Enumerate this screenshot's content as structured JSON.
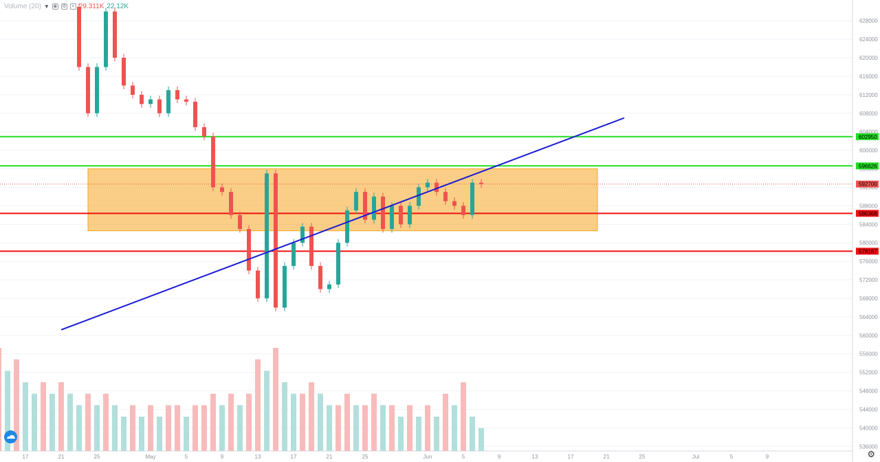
{
  "legend": {
    "indicator": "Volume (20)",
    "chevron": "chevron-down-icon",
    "value_red": "29.311K",
    "value_green": "22.12K",
    "icons": [
      "eye-icon",
      "gear-icon",
      "close-icon"
    ]
  },
  "chart_data": {
    "type": "candlestick",
    "price_range": [
      535000,
      631000
    ],
    "price_ticks": [
      628000,
      624000,
      620000,
      616000,
      612000,
      608000,
      604000,
      600000,
      596000,
      592000,
      588000,
      584000,
      580000,
      576000,
      572000,
      568000,
      564000,
      560000,
      556000,
      552000,
      548000,
      544000,
      540000,
      536000
    ],
    "x_axis_labels": [
      "17",
      "21",
      "25",
      "May",
      "5",
      "9",
      "13",
      "17",
      "21",
      "25",
      "Jun",
      "5",
      "9",
      "13",
      "17",
      "21",
      "25",
      "Jul",
      "5",
      "9"
    ],
    "price_labels": [
      {
        "value": "602950",
        "color": "#22dd22"
      },
      {
        "value": "596626",
        "color": "#22dd22"
      },
      {
        "value": "592700",
        "color": "#ef5350"
      },
      {
        "value": "586368",
        "color": "#ee1111"
      },
      {
        "value": "578187",
        "color": "#ee1111"
      }
    ],
    "horizontal_lines": [
      {
        "price": 602950,
        "color": "#22dd22"
      },
      {
        "price": 596626,
        "color": "#22dd22"
      },
      {
        "price": 586368,
        "color": "#ee1111"
      },
      {
        "price": 578187,
        "color": "#ee1111"
      }
    ],
    "current_price_line": {
      "price": 592700,
      "color": "#ef5350"
    },
    "trendline": {
      "from": {
        "date": "Apr 21",
        "price": 561200
      },
      "to": {
        "date": "Jun 23",
        "price": 607000
      },
      "color": "#1a1ad4"
    },
    "range_box": {
      "from_date": "Apr 24",
      "to_date": "Jun 20",
      "top": 596000,
      "bottom": 582600,
      "color": "#f5a623"
    },
    "price_path": [
      {
        "date": "Apr 22",
        "price": 631000
      },
      {
        "date": "Apr 23",
        "price": 618000
      },
      {
        "date": "Apr 24",
        "price": 608000
      },
      {
        "date": "Apr 25",
        "price": 618000
      },
      {
        "date": "Apr 26",
        "price": 630000
      },
      {
        "date": "Apr 27",
        "price": 620000
      },
      {
        "date": "Apr 28",
        "price": 614000
      },
      {
        "date": "Apr 29",
        "price": 612000
      },
      {
        "date": "Apr 30",
        "price": 610000
      },
      {
        "date": "May 1",
        "price": 611000
      },
      {
        "date": "May 2",
        "price": 608000
      },
      {
        "date": "May 3",
        "price": 613000
      },
      {
        "date": "May 4",
        "price": 611000
      },
      {
        "date": "May 5",
        "price": 610500
      },
      {
        "date": "May 6",
        "price": 605000
      },
      {
        "date": "May 7",
        "price": 603000
      },
      {
        "date": "May 8",
        "price": 592000
      },
      {
        "date": "May 9",
        "price": 591000
      },
      {
        "date": "May 10",
        "price": 586000
      },
      {
        "date": "May 11",
        "price": 583000
      },
      {
        "date": "May 12",
        "price": 574000
      },
      {
        "date": "May 13",
        "price": 568000
      },
      {
        "date": "May 14",
        "price": 595000
      },
      {
        "date": "May 15",
        "price": 566000
      },
      {
        "date": "May 16",
        "price": 575000
      },
      {
        "date": "May 17",
        "price": 580000
      },
      {
        "date": "May 18",
        "price": 583500
      },
      {
        "date": "May 19",
        "price": 575000
      },
      {
        "date": "May 20",
        "price": 570000
      },
      {
        "date": "May 21",
        "price": 571000
      },
      {
        "date": "May 22",
        "price": 580000
      },
      {
        "date": "May 23",
        "price": 587000
      },
      {
        "date": "May 24",
        "price": 591000
      },
      {
        "date": "May 25",
        "price": 585000
      },
      {
        "date": "May 26",
        "price": 590000
      },
      {
        "date": "May 27",
        "price": 583000
      },
      {
        "date": "May 28",
        "price": 588000
      },
      {
        "date": "May 29",
        "price": 584000
      },
      {
        "date": "May 30",
        "price": 588000
      },
      {
        "date": "May 31",
        "price": 592000
      },
      {
        "date": "Jun 1",
        "price": 593000
      },
      {
        "date": "Jun 2",
        "price": 591000
      },
      {
        "date": "Jun 3",
        "price": 589000
      },
      {
        "date": "Jun 4",
        "price": 588000
      },
      {
        "date": "Jun 5",
        "price": 586000
      },
      {
        "date": "Jun 6",
        "price": 593000
      },
      {
        "date": "Jun 7",
        "price": 592700
      }
    ],
    "volume_bars": [
      {
        "date": "Apr 14",
        "volume": 9
      },
      {
        "date": "Apr 15",
        "volume": 7
      },
      {
        "date": "Apr 16",
        "volume": 8
      },
      {
        "date": "Apr 17",
        "volume": 6
      },
      {
        "date": "Apr 18",
        "volume": 5
      },
      {
        "date": "Apr 19",
        "volume": 6
      },
      {
        "date": "Apr 20",
        "volume": 5
      },
      {
        "date": "Apr 21",
        "volume": 6
      },
      {
        "date": "Apr 22",
        "volume": 5
      },
      {
        "date": "Apr 23",
        "volume": 4
      },
      {
        "date": "Apr 24",
        "volume": 5
      },
      {
        "date": "Apr 25",
        "volume": 4
      },
      {
        "date": "Apr 26",
        "volume": 5
      },
      {
        "date": "Apr 27",
        "volume": 4
      },
      {
        "date": "Apr 28",
        "volume": 3
      },
      {
        "date": "Apr 29",
        "volume": 4
      },
      {
        "date": "Apr 30",
        "volume": 3
      },
      {
        "date": "May 1",
        "volume": 4
      },
      {
        "date": "May 2",
        "volume": 3
      },
      {
        "date": "May 3",
        "volume": 4
      },
      {
        "date": "May 4",
        "volume": 4
      },
      {
        "date": "May 5",
        "volume": 3
      },
      {
        "date": "May 6",
        "volume": 4
      },
      {
        "date": "May 7",
        "volume": 4
      },
      {
        "date": "May 8",
        "volume": 5
      },
      {
        "date": "May 9",
        "volume": 4
      },
      {
        "date": "May 10",
        "volume": 5
      },
      {
        "date": "May 11",
        "volume": 4
      },
      {
        "date": "May 12",
        "volume": 5
      },
      {
        "date": "May 13",
        "volume": 8
      },
      {
        "date": "May 14",
        "volume": 7
      },
      {
        "date": "May 15",
        "volume": 9
      },
      {
        "date": "May 16",
        "volume": 6
      },
      {
        "date": "May 17",
        "volume": 5
      },
      {
        "date": "May 18",
        "volume": 5
      },
      {
        "date": "May 19",
        "volume": 6
      },
      {
        "date": "May 20",
        "volume": 5
      },
      {
        "date": "May 21",
        "volume": 4
      },
      {
        "date": "May 22",
        "volume": 4
      },
      {
        "date": "May 23",
        "volume": 5
      },
      {
        "date": "May 24",
        "volume": 4
      },
      {
        "date": "May 25",
        "volume": 4
      },
      {
        "date": "May 26",
        "volume": 5
      },
      {
        "date": "May 27",
        "volume": 4
      },
      {
        "date": "May 28",
        "volume": 4
      },
      {
        "date": "May 29",
        "volume": 3
      },
      {
        "date": "May 30",
        "volume": 4
      },
      {
        "date": "May 31",
        "volume": 3
      },
      {
        "date": "Jun 1",
        "volume": 4
      },
      {
        "date": "Jun 2",
        "volume": 3
      },
      {
        "date": "Jun 3",
        "volume": 5
      },
      {
        "date": "Jun 4",
        "volume": 4
      },
      {
        "date": "Jun 5",
        "volume": 6
      },
      {
        "date": "Jun 6",
        "volume": 3
      },
      {
        "date": "Jun 7",
        "volume": 2
      }
    ],
    "colors": {
      "up": "#26a69a",
      "down": "#ef5350",
      "vol_up": "#b2dfdb",
      "vol_down": "#f8bbbb",
      "grid": "#f0f3fa",
      "axis_text": "#8f959e"
    }
  }
}
